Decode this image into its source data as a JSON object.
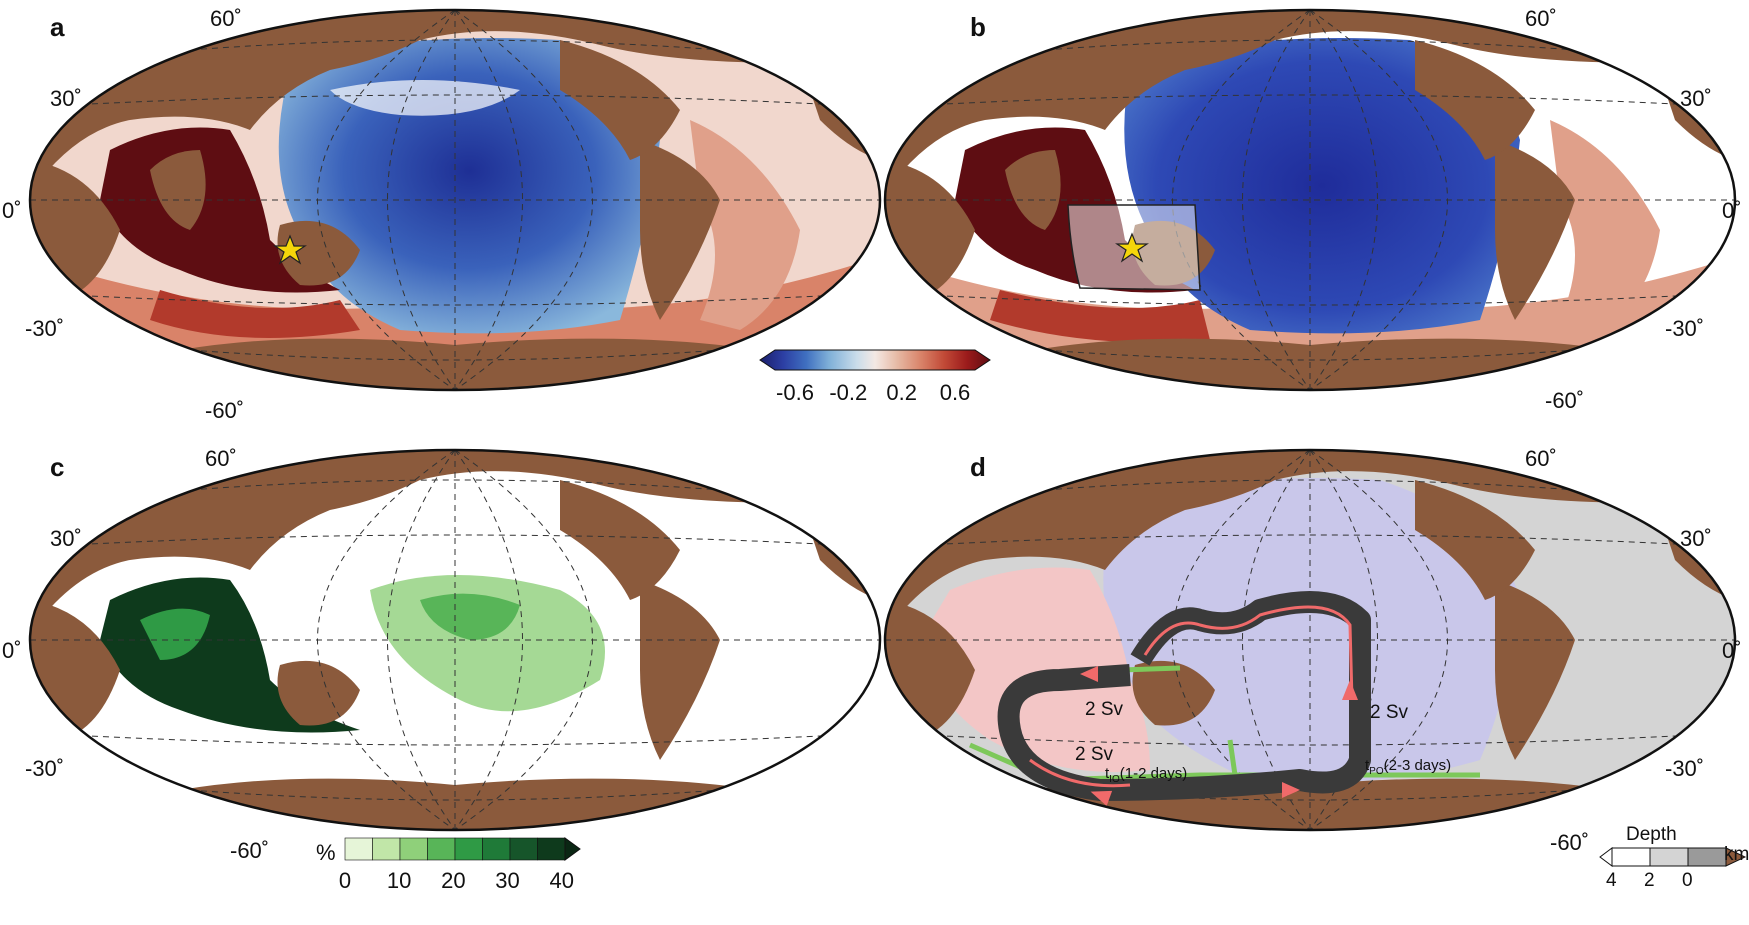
{
  "colors": {
    "land": "#8b5a3c",
    "ocean_white": "#ffffff",
    "diverging": [
      "#1b1f6b",
      "#2c3ea3",
      "#3f6fc0",
      "#7fb0d8",
      "#c9dcea",
      "#f4e9e4",
      "#e6b8a3",
      "#d98369",
      "#c24a37",
      "#9b1b1b",
      "#5e0d12"
    ],
    "greens": [
      "#e6f5d8",
      "#c1e6a8",
      "#8fd07a",
      "#58b558",
      "#2f9a45",
      "#1f7a38",
      "#16552a",
      "#0e3a1c",
      "#0a2613"
    ],
    "depth": [
      "#ffffff",
      "#d4d4d4",
      "#9a9a9a",
      "#8b5a3c"
    ],
    "indian_region": "#f3c6c6",
    "pacific_region": "#c9c7ea",
    "path": "#3a3a3a",
    "arrow": "#f06a6a",
    "section_line": "#7dc85a",
    "star": "#f5d60a"
  },
  "panels": [
    {
      "id": "a",
      "label": "a"
    },
    {
      "id": "b",
      "label": "b"
    },
    {
      "id": "c",
      "label": "c"
    },
    {
      "id": "d",
      "label": "d"
    }
  ],
  "lat_labels": {
    "n60": "60˚",
    "n30": "30˚",
    "eq": "0˚",
    "s30": "-30˚",
    "s60": "-60˚"
  },
  "colorbar_div": {
    "ticks": [
      "-0.6",
      "-0.2",
      "0.2",
      "0.6"
    ],
    "tick_values": [
      -0.6,
      -0.2,
      0.2,
      0.6
    ],
    "range": [
      -0.75,
      0.75
    ]
  },
  "colorbar_pct": {
    "unit": "%",
    "ticks": [
      "0",
      "10",
      "20",
      "30",
      "40"
    ],
    "tick_values": [
      0,
      10,
      20,
      30,
      40
    ],
    "range": [
      0,
      45
    ]
  },
  "colorbar_depth": {
    "title": "Depth",
    "unit": "km",
    "ticks": [
      "4",
      "2",
      "0"
    ]
  },
  "panel_d": {
    "transport_io_upper": "2 Sv",
    "transport_io_lower": "2 Sv",
    "transport_po": "2 Sv",
    "t_io_prefix": "t",
    "t_io_sub": "IO",
    "t_io_text": "(1-2 days)",
    "t_po_prefix": "t",
    "t_po_sub": "PO",
    "t_po_text": "(2-3 days)"
  }
}
